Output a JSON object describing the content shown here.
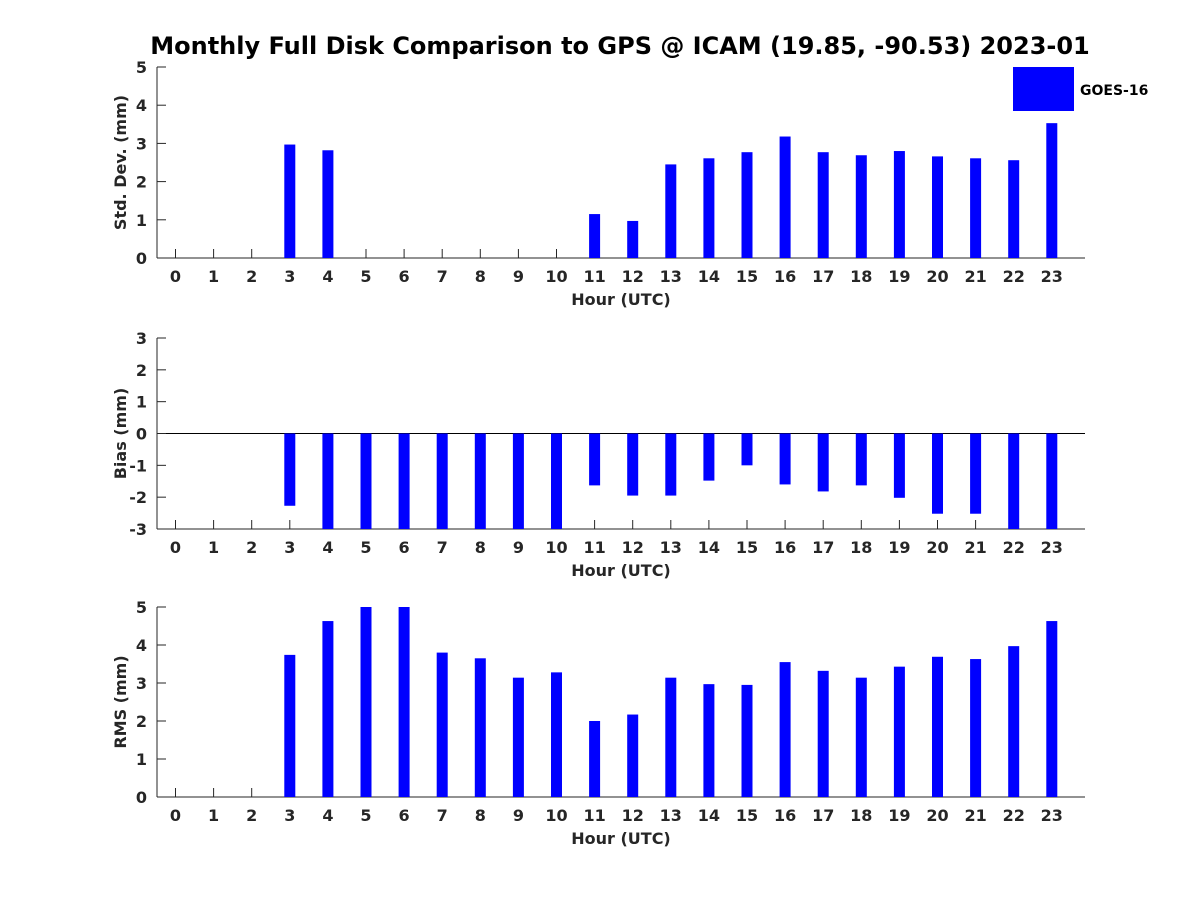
{
  "title": "Monthly Full Disk Comparison to GPS @ ICAM (19.85, -90.53) 2023-01",
  "legend": {
    "label": "GOES-16",
    "color": "#0000ff",
    "placement": "top-right"
  },
  "chart_data": [
    {
      "type": "bar",
      "xlabel": "Hour (UTC)",
      "ylabel": "Std. Dev. (mm)",
      "ylim": [
        0,
        5
      ],
      "yticks": [
        0,
        1,
        2,
        3,
        4,
        5
      ],
      "categories": [
        "0",
        "1",
        "2",
        "3",
        "4",
        "5",
        "6",
        "7",
        "8",
        "9",
        "10",
        "11",
        "12",
        "13",
        "14",
        "15",
        "16",
        "17",
        "18",
        "19",
        "20",
        "21",
        "22",
        "23"
      ],
      "series": [
        {
          "name": "GOES-16",
          "values": [
            null,
            null,
            null,
            2.97,
            2.82,
            null,
            null,
            null,
            null,
            null,
            null,
            1.15,
            0.97,
            2.45,
            2.61,
            2.77,
            3.18,
            2.77,
            2.69,
            2.8,
            2.66,
            2.61,
            2.56,
            3.53
          ]
        }
      ]
    },
    {
      "type": "bar",
      "xlabel": "Hour (UTC)",
      "ylabel": "Bias (mm)",
      "ylim": [
        -3,
        3
      ],
      "yticks": [
        -3,
        -2,
        -1,
        0,
        1,
        2,
        3
      ],
      "categories": [
        "0",
        "1",
        "2",
        "3",
        "4",
        "5",
        "6",
        "7",
        "8",
        "9",
        "10",
        "11",
        "12",
        "13",
        "14",
        "15",
        "16",
        "17",
        "18",
        "19",
        "20",
        "21",
        "22",
        "23"
      ],
      "series": [
        {
          "name": "GOES-16",
          "values": [
            null,
            null,
            null,
            -2.27,
            -3.0,
            -3.0,
            -3.0,
            -3.0,
            -3.0,
            -3.0,
            -3.0,
            -1.63,
            -1.95,
            -1.95,
            -1.48,
            -1.0,
            -1.6,
            -1.82,
            -1.63,
            -2.02,
            -2.52,
            -2.52,
            -3.0,
            -3.0
          ]
        }
      ]
    },
    {
      "type": "bar",
      "xlabel": "Hour (UTC)",
      "ylabel": "RMS (mm)",
      "ylim": [
        0,
        5
      ],
      "yticks": [
        0,
        1,
        2,
        3,
        4,
        5
      ],
      "categories": [
        "0",
        "1",
        "2",
        "3",
        "4",
        "5",
        "6",
        "7",
        "8",
        "9",
        "10",
        "11",
        "12",
        "13",
        "14",
        "15",
        "16",
        "17",
        "18",
        "19",
        "20",
        "21",
        "22",
        "23"
      ],
      "series": [
        {
          "name": "GOES-16",
          "values": [
            null,
            null,
            null,
            3.74,
            4.63,
            5.0,
            5.0,
            3.8,
            3.65,
            3.14,
            3.28,
            2.0,
            2.17,
            3.14,
            2.97,
            2.95,
            3.55,
            3.32,
            3.14,
            3.43,
            3.69,
            3.63,
            3.97,
            4.63
          ]
        }
      ]
    }
  ]
}
